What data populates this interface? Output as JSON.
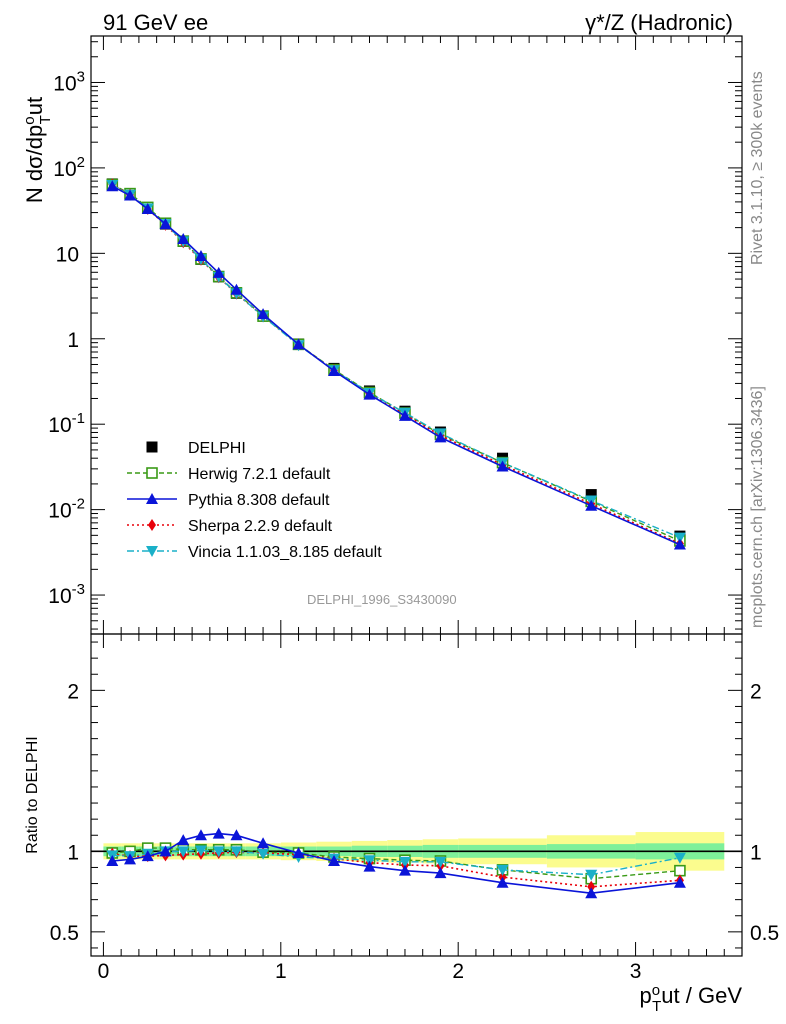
{
  "header": {
    "left": "91 GeV ee",
    "right": "γ*/Z (Hadronic)"
  },
  "side_labels": {
    "rivet": "Rivet 3.1.10, ≥ 300k events",
    "mcplots": "mcplots.cern.ch [arXiv:1306.3436]"
  },
  "watermark": "DELPHI_1996_S3430090",
  "colors": {
    "data": "#000000",
    "herwig": "#3a9a16",
    "pythia": "#0a14d8",
    "sherpa": "#e8000a",
    "vincia": "#1ab0c8",
    "band_inner": "#7ef09a",
    "band_outer": "#fbfc8e"
  },
  "chart_data": [
    {
      "type": "scatter",
      "panel": "main",
      "ylabel": {
        "main": "N dσ/dp",
        "sup": "o",
        "sub": "T",
        "rest": "ut"
      },
      "yscale": "log",
      "ylim": [
        0.00035,
        3500
      ],
      "xlim": [
        -0.07,
        3.6
      ],
      "yticks": [
        {
          "label": "10",
          "exp": "-3",
          "v": 0.001
        },
        {
          "label": "10",
          "exp": "-2",
          "v": 0.01
        },
        {
          "label": "10",
          "exp": "-1",
          "v": 0.1
        },
        {
          "label": "1",
          "exp": "",
          "v": 1
        },
        {
          "label": "10",
          "exp": "",
          "v": 10
        },
        {
          "label": "10",
          "exp": "2",
          "v": 100
        },
        {
          "label": "10",
          "exp": "3",
          "v": 1000
        }
      ],
      "x": [
        0.05,
        0.15,
        0.25,
        0.35,
        0.45,
        0.55,
        0.65,
        0.75,
        0.9,
        1.1,
        1.3,
        1.5,
        1.7,
        1.9,
        2.25,
        2.75,
        3.25
      ],
      "series": [
        {
          "name": "DELPHI",
          "key": "data",
          "values": [
            65,
            50,
            34,
            22,
            13.8,
            8.5,
            5.3,
            3.4,
            1.85,
            0.87,
            0.45,
            0.245,
            0.142,
            0.081,
            0.04,
            0.015,
            0.0049
          ]
        },
        {
          "name": "Herwig 7.2.1 default",
          "key": "herwig",
          "values": [
            64,
            50,
            34.5,
            22.5,
            13.9,
            8.6,
            5.35,
            3.45,
            1.84,
            0.86,
            0.435,
            0.235,
            0.135,
            0.076,
            0.0355,
            0.0125,
            0.0043
          ]
        },
        {
          "name": "Pythia 8.308 default",
          "key": "pythia",
          "values": [
            61,
            47.5,
            33,
            22,
            14.7,
            9.3,
            5.9,
            3.75,
            1.94,
            0.86,
            0.42,
            0.222,
            0.125,
            0.07,
            0.032,
            0.0111,
            0.0039
          ]
        },
        {
          "name": "Sherpa 2.2.9 default",
          "key": "sherpa",
          "values": [
            64,
            48.5,
            33,
            21.5,
            13.5,
            8.4,
            5.25,
            3.38,
            1.83,
            0.85,
            0.43,
            0.228,
            0.13,
            0.074,
            0.0335,
            0.0117,
            0.004
          ]
        },
        {
          "name": "Vincia 1.1.03_8.185 default",
          "key": "vincia",
          "values": [
            63,
            48.5,
            33.5,
            22,
            13.8,
            8.55,
            5.3,
            3.4,
            1.82,
            0.84,
            0.43,
            0.232,
            0.136,
            0.078,
            0.0355,
            0.0128,
            0.0047
          ]
        }
      ]
    },
    {
      "type": "line",
      "panel": "ratio",
      "ylabel": "Ratio to DELPHI",
      "xlabel": {
        "p": "p",
        "sup": "o",
        "sub": "T",
        "rest": "ut / GeV"
      },
      "ylim": [
        0.35,
        2.35
      ],
      "xlim": [
        -0.07,
        3.6
      ],
      "xticks": [
        {
          "label": "0",
          "v": 0
        },
        {
          "label": "1",
          "v": 1
        },
        {
          "label": "2",
          "v": 2
        },
        {
          "label": "3",
          "v": 3
        }
      ],
      "yticks": [
        {
          "label": "0.5",
          "v": 0.5
        },
        {
          "label": "1",
          "v": 1
        },
        {
          "label": "2",
          "v": 2
        }
      ],
      "bins": [
        [
          0,
          0.1
        ],
        [
          0.1,
          0.2
        ],
        [
          0.2,
          0.3
        ],
        [
          0.3,
          0.4
        ],
        [
          0.4,
          0.5
        ],
        [
          0.5,
          0.6
        ],
        [
          0.6,
          0.7
        ],
        [
          0.7,
          0.8
        ],
        [
          0.8,
          1.0
        ],
        [
          1.0,
          1.2
        ],
        [
          1.2,
          1.4
        ],
        [
          1.4,
          1.6
        ],
        [
          1.6,
          1.8
        ],
        [
          1.8,
          2.0
        ],
        [
          2.0,
          2.5
        ],
        [
          2.5,
          3.0
        ],
        [
          3.0,
          3.5
        ]
      ],
      "band_inner": [
        0.03,
        0.03,
        0.03,
        0.03,
        0.03,
        0.03,
        0.03,
        0.03,
        0.03,
        0.03,
        0.03,
        0.035,
        0.035,
        0.04,
        0.04,
        0.045,
        0.05
      ],
      "band_outer": [
        0.05,
        0.05,
        0.05,
        0.05,
        0.05,
        0.05,
        0.05,
        0.05,
        0.05,
        0.055,
        0.06,
        0.065,
        0.07,
        0.075,
        0.08,
        0.1,
        0.12
      ],
      "x": [
        0.05,
        0.15,
        0.25,
        0.35,
        0.45,
        0.55,
        0.65,
        0.75,
        0.9,
        1.1,
        1.3,
        1.5,
        1.7,
        1.9,
        2.25,
        2.75,
        3.25
      ],
      "series": [
        {
          "name": "Herwig 7.2.1 default",
          "key": "herwig",
          "values": [
            0.99,
            1.0,
            1.02,
            1.02,
            1.01,
            1.01,
            1.01,
            1.01,
            0.995,
            0.99,
            0.965,
            0.955,
            0.945,
            0.94,
            0.885,
            0.83,
            0.88
          ]
        },
        {
          "name": "Pythia 8.308 default",
          "key": "pythia",
          "values": [
            0.94,
            0.95,
            0.97,
            1.0,
            1.07,
            1.1,
            1.11,
            1.1,
            1.05,
            0.99,
            0.94,
            0.905,
            0.88,
            0.865,
            0.805,
            0.74,
            0.805
          ]
        },
        {
          "name": "Sherpa 2.2.9 default",
          "key": "sherpa",
          "values": [
            0.985,
            0.97,
            0.97,
            0.975,
            0.98,
            0.985,
            0.99,
            0.995,
            0.99,
            0.98,
            0.955,
            0.93,
            0.915,
            0.91,
            0.84,
            0.78,
            0.82
          ]
        },
        {
          "name": "Vincia 1.1.03_8.185 default",
          "key": "vincia",
          "values": [
            0.975,
            0.97,
            0.985,
            1.0,
            1.0,
            1.005,
            1.0,
            1.0,
            0.985,
            0.965,
            0.955,
            0.945,
            0.935,
            0.935,
            0.885,
            0.855,
            0.96
          ]
        }
      ]
    }
  ]
}
